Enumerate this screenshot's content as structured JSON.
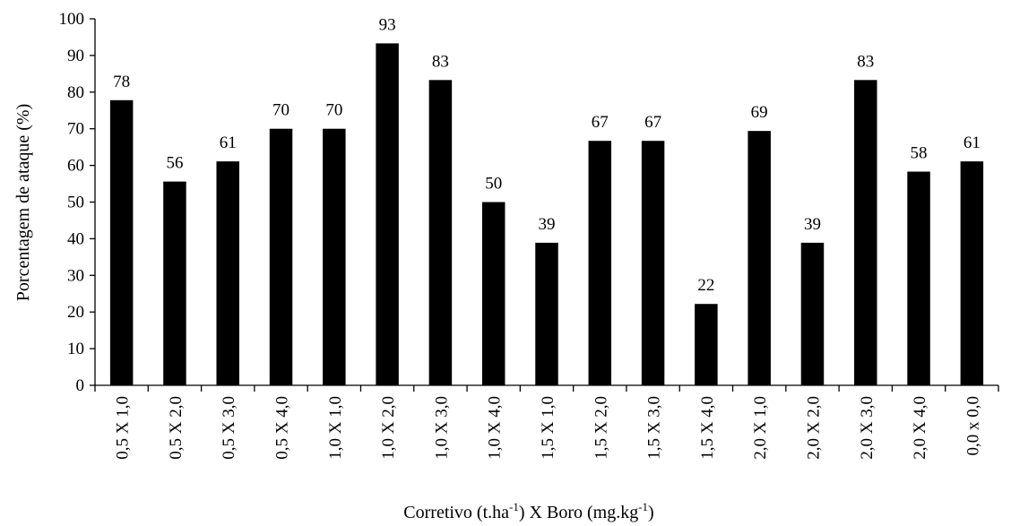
{
  "chart_data": {
    "type": "bar",
    "title": "",
    "ylabel": "Porcentagem de ataque (%)",
    "xlabel_parts": {
      "a": "Corretivo (t.ha",
      "a_sup": "-1",
      "b": ") X  Boro (mg.kg",
      "b_sup": "-1",
      "c": ")"
    },
    "ylim": [
      0,
      100
    ],
    "yticks": [
      0,
      10,
      20,
      30,
      40,
      50,
      60,
      70,
      80,
      90,
      100
    ],
    "grid": false,
    "legend": "none",
    "bar_color": "#000000",
    "categories": [
      "0,5 X 1,0",
      "0,5 X 2,0",
      "0,5 X 3,0",
      "0,5 X 4,0",
      "1,0 X 1,0",
      "1,0 X 2,0",
      "1,0 X 3,0",
      "1,0 X 4,0",
      "1,5 X 1,0",
      "1,5 X 2,0",
      "1,5 X 3,0",
      "1,5 X 4,0",
      "2,0 X 1,0",
      "2,0 X 2,0",
      "2,0 X 3,0",
      "2,0 X 4,0",
      "0,0 x 0,0"
    ],
    "values": [
      77.8,
      55.6,
      61.1,
      70.0,
      70.0,
      93.3,
      83.3,
      50.0,
      38.9,
      66.7,
      66.7,
      22.2,
      69.4,
      38.9,
      83.3,
      58.3,
      61.1
    ],
    "data_labels": [
      "78",
      "56",
      "61",
      "70",
      "70",
      "93",
      "83",
      "50",
      "39",
      "67",
      "67",
      "22",
      "69",
      "39",
      "83",
      "58",
      "61"
    ]
  }
}
